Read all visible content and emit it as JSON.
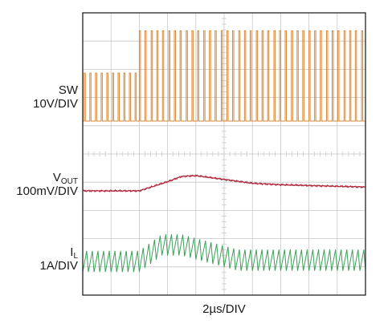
{
  "chart_data": {
    "type": "line",
    "title": "",
    "xlabel": "2µs/DIV",
    "grid": true,
    "x_divisions": 10,
    "y_divisions": 10,
    "series": [
      {
        "name": "SW",
        "scale": "10V/DIV",
        "color": "#d98a3a",
        "description_values": {
          "baseline_div": 0,
          "light_load_pulse_height_div": 1.7,
          "heavy_load_pulse_height_div": 3.2,
          "load_step_time_div": 2.0
        }
      },
      {
        "name": "VOUT",
        "scale": "100mV/DIV",
        "color": "#b0283c",
        "x": [
          0,
          1,
          2,
          3,
          3.5,
          4,
          5,
          6,
          7,
          8,
          9,
          10
        ],
        "values": [
          0,
          0,
          0,
          0.6,
          0.95,
          1.0,
          0.75,
          0.5,
          0.4,
          0.35,
          0.3,
          0.25
        ]
      },
      {
        "name": "IL",
        "scale": "1A/DIV",
        "color": "#3ca05a",
        "description_values": {
          "ripple_amplitude_div": 0.75,
          "light_load_avg_div": 0,
          "peak_avg_div": 1.3,
          "settled_avg_div": 0.1
        }
      }
    ]
  },
  "labels": {
    "sw_name": "SW",
    "sw_scale": "10V/DIV",
    "vout_name": "V",
    "vout_sub": "OUT",
    "vout_scale": "100mV/DIV",
    "il_name": "I",
    "il_sub": "L",
    "il_scale": "1A/DIV",
    "time_scale": "2µs/DIV"
  },
  "colors": {
    "grid": "#c8c8c8",
    "frame": "#222222",
    "sw": "#d98a3a",
    "vout": "#b0283c",
    "il": "#3ca05a"
  }
}
